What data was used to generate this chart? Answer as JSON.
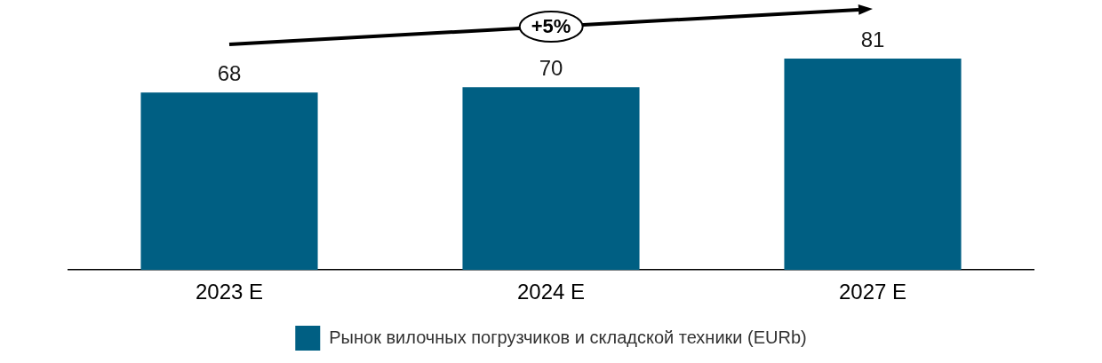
{
  "chart_data": {
    "type": "bar",
    "categories": [
      "2023 E",
      "2024 E",
      "2027 E"
    ],
    "series": [
      {
        "name": "Рынок вилочных погрузчиков и складской техники (EURb)",
        "color": "#005f83",
        "values": [
          68,
          70,
          81
        ]
      }
    ],
    "ylim": [
      0,
      100
    ],
    "tick_labels": "x",
    "grid": false,
    "legend": "bottom",
    "data_labels": true,
    "annotations": [
      "+5%"
    ]
  }
}
